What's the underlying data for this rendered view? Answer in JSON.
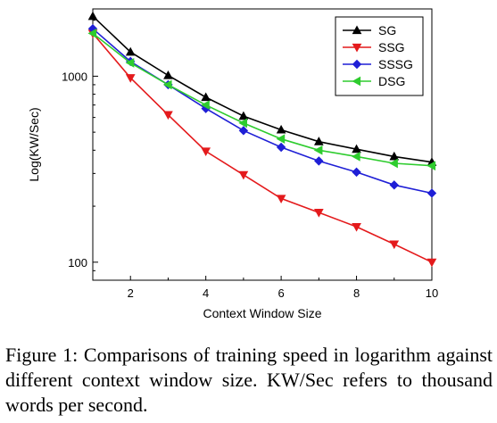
{
  "caption": "Figure 1: Comparisons of training speed in logarithm against different context window size. KW/Sec refers to thousand words per second.",
  "chart_data": {
    "type": "line",
    "xlabel": "Context Window Size",
    "ylabel": "Log(KW/Sec)",
    "yscale": "log",
    "xlim": [
      1,
      10
    ],
    "ylim": [
      80,
      2300
    ],
    "x_ticks": [
      2,
      4,
      6,
      8,
      10
    ],
    "y_ticks": [
      100,
      1000
    ],
    "grid": false,
    "legend_position": "top-right",
    "x": [
      1,
      2,
      3,
      4,
      5,
      6,
      7,
      8,
      9,
      10
    ],
    "series": [
      {
        "name": "SG",
        "color": "#000000",
        "marker": "triangle-up",
        "values": [
          2100,
          1350,
          1010,
          770,
          610,
          515,
          445,
          405,
          370,
          345
        ]
      },
      {
        "name": "SSG",
        "color": "#e41a1c",
        "marker": "triangle-down",
        "values": [
          1700,
          980,
          620,
          395,
          295,
          220,
          185,
          155,
          125,
          100
        ]
      },
      {
        "name": "SSSG",
        "color": "#1f1fd6",
        "marker": "diamond",
        "values": [
          1800,
          1200,
          900,
          670,
          510,
          415,
          350,
          305,
          260,
          235
        ]
      },
      {
        "name": "DSG",
        "color": "#2ecc2e",
        "marker": "triangle-left",
        "values": [
          1700,
          1180,
          900,
          700,
          560,
          460,
          400,
          370,
          340,
          330
        ]
      }
    ]
  }
}
